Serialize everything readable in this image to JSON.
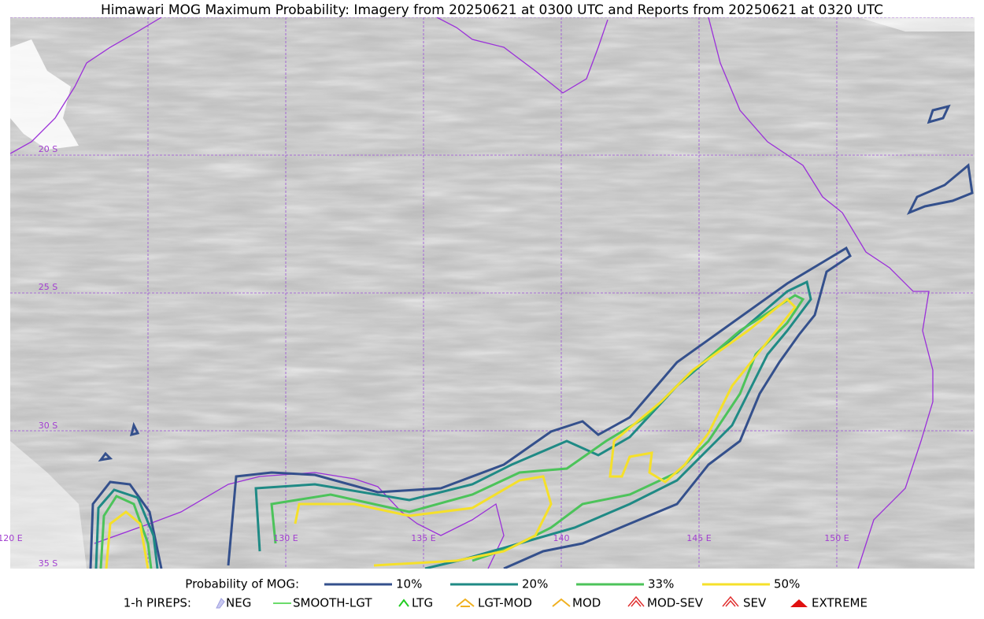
{
  "title": "Himawari MOG Maximum Probability: Imagery from 20250621 at 0300 UTC and Reports from 20250621 at 0320 UTC",
  "map": {
    "lon_labels": [
      "120 E",
      "130 E",
      "135 E",
      "140",
      "145 E",
      "150 E"
    ],
    "lat_labels": [
      "20 S",
      "25 S",
      "30 S",
      "35 S"
    ]
  },
  "legend": {
    "probability_title": "Probability of MOG:",
    "probability_levels": [
      "10%",
      "20%",
      "33%",
      "50%"
    ],
    "pireps_title": "1-h PIREPS:",
    "pireps": [
      "NEG",
      "SMOOTH-LGT",
      "LTG",
      "LGT-MOD",
      "MOD",
      "MOD-SEV",
      "SEV",
      "EXTREME"
    ]
  }
}
